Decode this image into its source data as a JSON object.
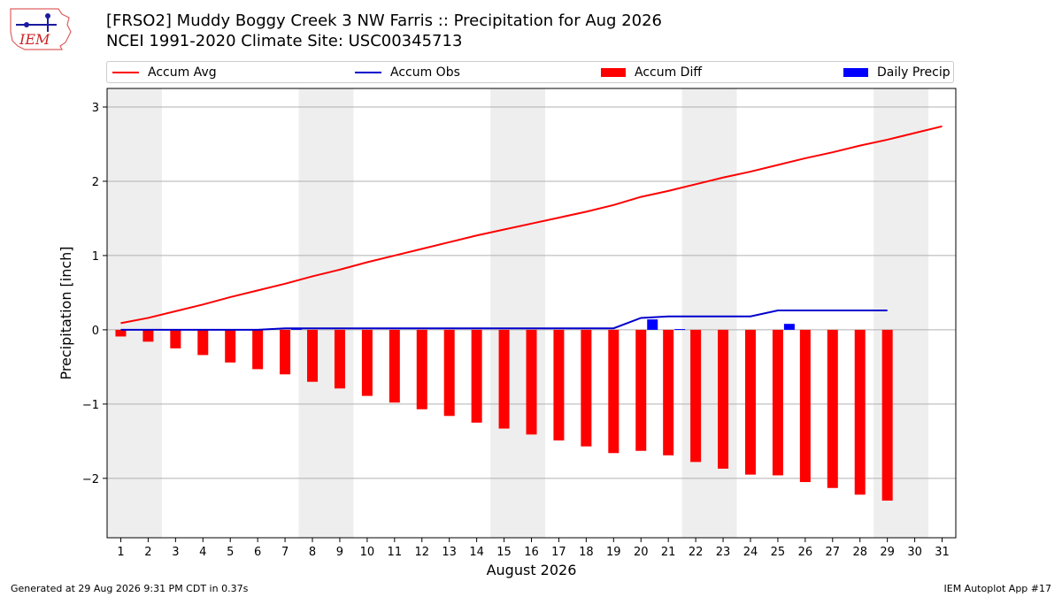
{
  "header": {
    "title_line1": "[FRSO2] Muddy Boggy Creek 3 NW Farris :: Precipitation for Aug 2026",
    "title_line2": "NCEI 1991-2020 Climate Site: USC00345713",
    "logo_text": "IEM"
  },
  "footer": {
    "generated": "Generated at 29 Aug 2026 9:31 PM CDT in 0.37s",
    "app": "IEM Autoplot App #17"
  },
  "colors": {
    "accum_avg": "#ff0000",
    "accum_obs": "#0000cc",
    "accum_diff": "#ff0000",
    "daily_precip": "#0000ff",
    "weekend_shade": "#eeeeee",
    "grid": "#b0b0b0"
  },
  "chart_data": {
    "type": "bar",
    "xlabel": "August 2026",
    "ylabel": "Precipitation [inch]",
    "xlim": [
      0.5,
      31.5
    ],
    "ylim": [
      -2.8,
      3.25
    ],
    "yticks": [
      3,
      2,
      1,
      0,
      -1,
      -2
    ],
    "ytick_labels": [
      "3",
      "2",
      "1",
      "0",
      "−1",
      "−2"
    ],
    "grid": "horizontal",
    "legend_position": "top",
    "shaded_periods": [
      [
        0.5,
        2.5
      ],
      [
        7.5,
        9.5
      ],
      [
        14.5,
        16.5
      ],
      [
        21.5,
        23.5
      ],
      [
        28.5,
        30.5
      ]
    ],
    "x": [
      1,
      2,
      3,
      4,
      5,
      6,
      7,
      8,
      9,
      10,
      11,
      12,
      13,
      14,
      15,
      16,
      17,
      18,
      19,
      20,
      21,
      22,
      23,
      24,
      25,
      26,
      27,
      28,
      29,
      30,
      31
    ],
    "series": [
      {
        "name": "Accum Avg",
        "kind": "line",
        "values": [
          0.09,
          0.16,
          0.25,
          0.34,
          0.44,
          0.53,
          0.62,
          0.72,
          0.81,
          0.91,
          1.0,
          1.09,
          1.18,
          1.27,
          1.35,
          1.43,
          1.51,
          1.59,
          1.68,
          1.79,
          1.87,
          1.96,
          2.05,
          2.13,
          2.22,
          2.31,
          2.39,
          2.48,
          2.56,
          2.65,
          2.74
        ]
      },
      {
        "name": "Accum Obs",
        "kind": "line",
        "values": [
          0.0,
          0.0,
          0.0,
          0.0,
          0.0,
          0.0,
          0.02,
          0.02,
          0.02,
          0.02,
          0.02,
          0.02,
          0.02,
          0.02,
          0.02,
          0.02,
          0.02,
          0.02,
          0.02,
          0.16,
          0.18,
          0.18,
          0.18,
          0.18,
          0.26,
          0.26,
          0.26,
          0.26,
          0.26,
          null,
          null
        ]
      },
      {
        "name": "Accum Diff",
        "kind": "bar",
        "values": [
          -0.09,
          -0.16,
          -0.25,
          -0.34,
          -0.44,
          -0.53,
          -0.6,
          -0.7,
          -0.79,
          -0.89,
          -0.98,
          -1.07,
          -1.16,
          -1.25,
          -1.33,
          -1.41,
          -1.49,
          -1.57,
          -1.66,
          -1.63,
          -1.69,
          -1.78,
          -1.87,
          -1.95,
          -1.96,
          -2.05,
          -2.13,
          -2.22,
          -2.3,
          null,
          null
        ]
      },
      {
        "name": "Daily Precip",
        "kind": "bar",
        "values": [
          0,
          0,
          0,
          0,
          0,
          0,
          0.02,
          0,
          0,
          0,
          0,
          0,
          0,
          0,
          0,
          0,
          0,
          0,
          0,
          0.14,
          0.01,
          0,
          0,
          0,
          0.08,
          0,
          0,
          0,
          0,
          null,
          null
        ]
      }
    ]
  }
}
